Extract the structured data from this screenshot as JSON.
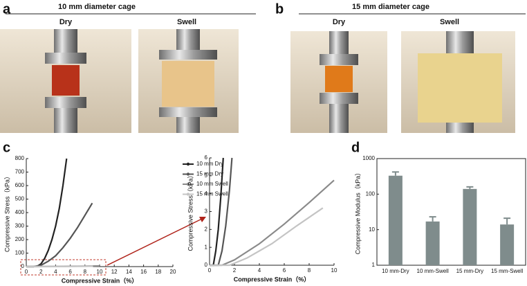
{
  "panel_labels": [
    "a",
    "b",
    "c",
    "d"
  ],
  "panels": {
    "a": {
      "title": "10 mm  diameter cage",
      "labels": [
        "Dry",
        "Swell"
      ]
    },
    "b": {
      "title": "15 mm diameter cage",
      "labels": [
        "Dry",
        "Swell"
      ]
    }
  },
  "chart_data": [
    {
      "type": "line",
      "xlabel": "Compressive Strain（%）",
      "ylabel": "Compressive Stress（kPa）",
      "xlim": [
        0,
        20
      ],
      "xticks": [
        0,
        2,
        4,
        6,
        8,
        10,
        12,
        14,
        16,
        18,
        20
      ],
      "ylim": [
        0,
        800
      ],
      "yticks": [
        0,
        100,
        200,
        300,
        400,
        500,
        600,
        700,
        800
      ],
      "legend": "right",
      "series": [
        {
          "name": "10 mm Dry",
          "color": "#222222",
          "x": [
            0,
            1,
            1.5,
            2,
            2.5,
            3,
            3.5,
            4,
            4.5,
            5,
            5.5
          ],
          "values": [
            0,
            0,
            3,
            20,
            60,
            120,
            200,
            300,
            430,
            600,
            800
          ]
        },
        {
          "name": "15 mm Dry",
          "color": "#555555",
          "x": [
            0,
            1,
            2,
            3,
            4,
            5,
            6,
            7,
            8,
            9
          ],
          "values": [
            0,
            0,
            10,
            40,
            80,
            140,
            210,
            290,
            380,
            470
          ]
        },
        {
          "name": "10 mm Swell",
          "color": "#8a8a8a",
          "x": [
            0,
            2,
            4,
            6,
            8,
            10
          ],
          "values": [
            0,
            0.5,
            1.5,
            2.5,
            3.6,
            4.75
          ]
        },
        {
          "name": "15 mm Swell",
          "color": "#c4c4c4",
          "x": [
            0,
            2,
            4,
            6,
            8,
            9.1
          ],
          "values": [
            0,
            0,
            0.8,
            1.7,
            2.6,
            3.2
          ]
        }
      ]
    },
    {
      "type": "line",
      "xlabel": "Compressive Strain（%）",
      "ylabel": "Compressive Stress（kPa）",
      "xlim": [
        0,
        10
      ],
      "xticks": [
        0,
        2,
        4,
        6,
        8,
        10
      ],
      "ylim": [
        0,
        6
      ],
      "yticks": [
        0,
        1,
        2,
        3,
        4,
        5,
        6
      ],
      "series": [
        {
          "color": "#222222",
          "x": [
            0,
            0.3,
            0.5,
            0.7,
            0.9,
            1.1
          ],
          "values": [
            0,
            0,
            0.8,
            2,
            3.8,
            6
          ]
        },
        {
          "color": "#555555",
          "x": [
            0,
            0.7,
            1,
            1.3,
            1.6,
            1.8
          ],
          "values": [
            0,
            0,
            0.8,
            2.2,
            4.2,
            6
          ]
        },
        {
          "color": "#8a8a8a",
          "x": [
            0,
            1,
            2,
            4,
            6,
            8,
            10
          ],
          "values": [
            0,
            0,
            0.3,
            1.2,
            2.3,
            3.5,
            4.75
          ]
        },
        {
          "color": "#c4c4c4",
          "x": [
            0,
            1.6,
            3,
            5,
            7,
            9.1
          ],
          "values": [
            0,
            0,
            0.4,
            1.2,
            2.2,
            3.2
          ]
        }
      ]
    },
    {
      "type": "bar",
      "ylabel": "Compressive Modulus（kPa）",
      "log_scale": true,
      "categories": [
        "10 mm-Dry",
        "10 mm-Swell",
        "15 mm-Dry",
        "15 mm-Swell"
      ],
      "values": [
        330,
        17,
        140,
        14
      ],
      "errors": [
        90,
        6,
        20,
        7
      ],
      "color": "#7f8c8c",
      "ylim": [
        1,
        1000
      ],
      "yticks": [
        1,
        10,
        100,
        1000
      ]
    }
  ]
}
